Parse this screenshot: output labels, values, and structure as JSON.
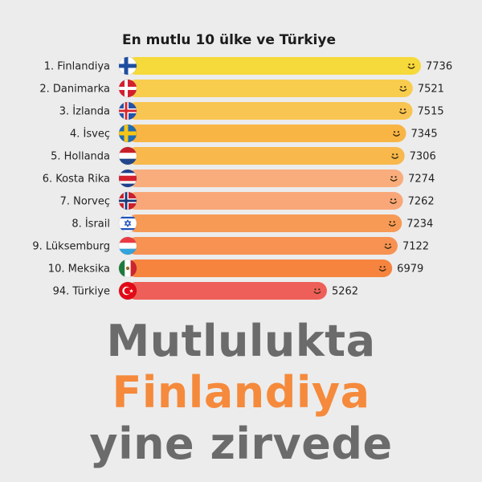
{
  "chart_data": {
    "type": "bar",
    "orientation": "horizontal",
    "title": "En mutlu 10 ülke ve Türkiye",
    "categories": [
      "1. Finlandiya",
      "2. Danimarka",
      "3. İzlanda",
      "4. İsveç",
      "5. Hollanda",
      "6. Kosta Rika",
      "7. Norveç",
      "8. İsrail",
      "9. Lüksemburg",
      "10. Meksika",
      "94. Türkiye"
    ],
    "values": [
      7736,
      7521,
      7515,
      7345,
      7306,
      7274,
      7262,
      7234,
      7122,
      6979,
      5262
    ],
    "value_labels": [
      "7736",
      "7521",
      "7515",
      "7345",
      "7306",
      "7274",
      "7262",
      "7234",
      "7122",
      "6979",
      "5262"
    ],
    "flags": [
      "finland-flag",
      "denmark-flag",
      "iceland-flag",
      "sweden-flag",
      "netherlands-flag",
      "costa-rica-flag",
      "norway-flag",
      "israel-flag",
      "luxembourg-flag",
      "mexico-flag",
      "turkey-flag"
    ],
    "bar_colors": [
      "#f6d93a",
      "#f8cd4e",
      "#f9c552",
      "#f8b544",
      "#f8b84c",
      "#f9ad7c",
      "#f9a778",
      "#f79a56",
      "#f79252",
      "#f6843f",
      "#ef5f59"
    ],
    "bar_icon": "smiley-icon",
    "xlim": [
      0,
      7736
    ],
    "grid": false,
    "legend": "none"
  },
  "headline": {
    "line1": "Mutlulukta",
    "line2": "Finlandiya",
    "line3": "yine zirvede",
    "colors": [
      "#6b6b6b",
      "#f58a3c",
      "#6b6b6b"
    ]
  }
}
